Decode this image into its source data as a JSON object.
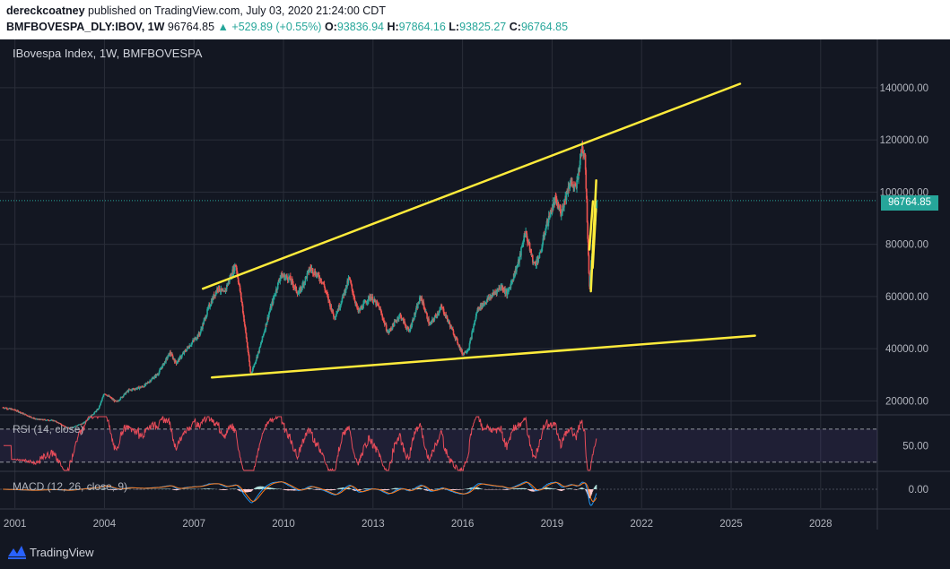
{
  "header": {
    "author": "dereckcoatney",
    "published_text": " published on TradingView.com, July 03, 2020 21:24:00 CDT",
    "symbol_interval": "BMFBOVESPA_DLY:IBOV, 1W",
    "last": "96764.85",
    "change": "▲ +529.89 (+0.55%)",
    "o_label": "O:",
    "o_value": "93836.94",
    "h_label": "H:",
    "h_value": "97864.16",
    "l_label": "L:",
    "l_value": "93825.27",
    "c_label": "C:",
    "c_value": "96764.85"
  },
  "chart_title": "IBovespa Index, 1W, BMFBOVESPA",
  "rsi_label": "RSI (14, close)",
  "macd_label": "MACD (12, 26, close, 9)",
  "last_price_badge": "96764.85",
  "brand": "TradingView",
  "colors": {
    "background": "#131722",
    "up": "#26a69a",
    "down": "#ef5350",
    "trendline": "#ffeb3b",
    "rsi": "#e84c5a",
    "macd": "#2196f3",
    "signal": "#ff7a1a"
  },
  "chart_data": {
    "type": "candlestick",
    "title": "IBovespa Index, 1W, BMFBOVESPA",
    "price_axis": {
      "ticks": [
        "20000.00",
        "40000.00",
        "60000.00",
        "80000.00",
        "100000.00",
        "120000.00",
        "140000.00"
      ],
      "values": [
        20000,
        40000,
        60000,
        80000,
        100000,
        120000,
        140000
      ],
      "range": [
        15000,
        153000
      ]
    },
    "time_axis": {
      "ticks": [
        "2001",
        "2004",
        "2007",
        "2010",
        "2013",
        "2016",
        "2019",
        "2022",
        "2025",
        "2028"
      ],
      "values": [
        2001,
        2004,
        2007,
        2010,
        2013,
        2016,
        2019,
        2022,
        2025,
        2028
      ],
      "range": [
        2000.5,
        2029.9
      ]
    },
    "price_path": [
      [
        2000.6,
        17500
      ],
      [
        2001.0,
        16500
      ],
      [
        2001.7,
        13000
      ],
      [
        2002.3,
        12500
      ],
      [
        2002.8,
        9500
      ],
      [
        2003.3,
        11500
      ],
      [
        2003.8,
        17000
      ],
      [
        2004.0,
        23000
      ],
      [
        2004.4,
        19500
      ],
      [
        2004.8,
        24000
      ],
      [
        2005.3,
        25500
      ],
      [
        2005.8,
        30500
      ],
      [
        2006.2,
        38500
      ],
      [
        2006.4,
        34500
      ],
      [
        2006.8,
        40500
      ],
      [
        2007.2,
        46000
      ],
      [
        2007.5,
        56000
      ],
      [
        2007.8,
        63500
      ],
      [
        2008.0,
        61000
      ],
      [
        2008.2,
        67000
      ],
      [
        2008.4,
        72500
      ],
      [
        2008.6,
        58000
      ],
      [
        2008.8,
        40000
      ],
      [
        2008.9,
        30000
      ],
      [
        2009.2,
        40000
      ],
      [
        2009.5,
        53000
      ],
      [
        2009.9,
        68000
      ],
      [
        2010.2,
        67000
      ],
      [
        2010.5,
        61000
      ],
      [
        2010.9,
        71000
      ],
      [
        2011.3,
        66000
      ],
      [
        2011.7,
        52000
      ],
      [
        2011.9,
        57000
      ],
      [
        2012.2,
        67000
      ],
      [
        2012.5,
        54000
      ],
      [
        2012.9,
        60000
      ],
      [
        2013.2,
        56000
      ],
      [
        2013.5,
        46000
      ],
      [
        2013.9,
        53000
      ],
      [
        2014.2,
        46500
      ],
      [
        2014.6,
        60000
      ],
      [
        2014.9,
        49000
      ],
      [
        2015.3,
        56000
      ],
      [
        2015.7,
        46000
      ],
      [
        2016.0,
        38000
      ],
      [
        2016.2,
        40000
      ],
      [
        2016.5,
        55000
      ],
      [
        2016.9,
        59500
      ],
      [
        2017.3,
        64000
      ],
      [
        2017.5,
        61000
      ],
      [
        2017.9,
        74000
      ],
      [
        2018.1,
        85000
      ],
      [
        2018.4,
        72000
      ],
      [
        2018.6,
        76000
      ],
      [
        2018.8,
        87000
      ],
      [
        2019.1,
        97000
      ],
      [
        2019.3,
        92000
      ],
      [
        2019.6,
        104000
      ],
      [
        2019.8,
        101000
      ],
      [
        2020.0,
        117000
      ],
      [
        2020.1,
        115000
      ],
      [
        2020.2,
        82000
      ],
      [
        2020.25,
        64000
      ],
      [
        2020.35,
        79000
      ],
      [
        2020.5,
        96765
      ]
    ],
    "trendlines": [
      {
        "name": "upper",
        "from": [
          2007.3,
          63000
        ],
        "to": [
          2025.3,
          141500
        ]
      },
      {
        "name": "lower",
        "from": [
          2007.6,
          29000
        ],
        "to": [
          2025.8,
          45000
        ]
      },
      {
        "name": "crash-up-1",
        "from": [
          2020.3,
          62000
        ],
        "to": [
          2020.48,
          104500
        ]
      },
      {
        "name": "crash-up-2",
        "from": [
          2020.36,
          71000
        ],
        "to": [
          2020.47,
          93500
        ]
      },
      {
        "name": "crash-down",
        "from": [
          2020.25,
          78000
        ],
        "to": [
          2020.37,
          96500
        ]
      }
    ],
    "last_price": 96764.85,
    "rsi": {
      "label": "RSI (14, close)",
      "levels": [
        70,
        30
      ],
      "tick": "50.00",
      "range": [
        20,
        85
      ]
    },
    "macd": {
      "label": "MACD (12, 26, close, 9)",
      "tick": "0.00"
    }
  }
}
